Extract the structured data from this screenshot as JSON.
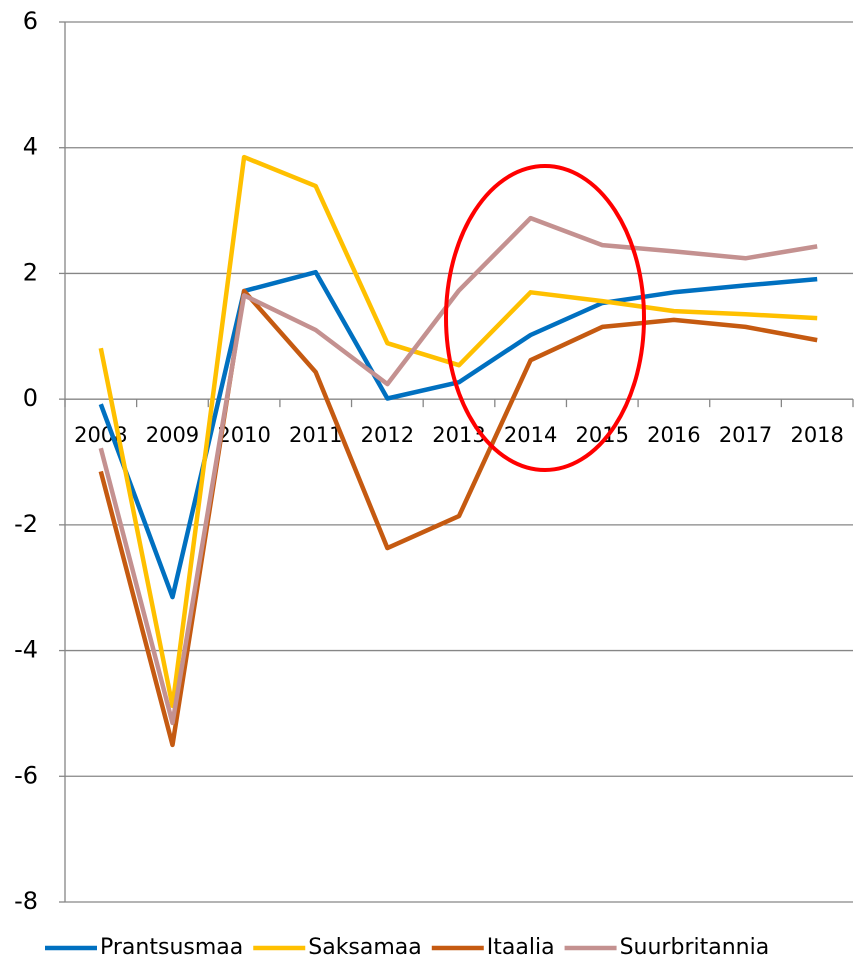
{
  "chart_data": {
    "type": "line",
    "categories": [
      "2008",
      "2009",
      "2010",
      "2011",
      "2012",
      "2013",
      "2014",
      "2015",
      "2016",
      "2017",
      "2018"
    ],
    "series": [
      {
        "name": "Prantsusmaa",
        "color": "#0070c0",
        "values": [
          -0.08,
          -3.15,
          1.72,
          2.02,
          0.01,
          0.27,
          1.02,
          1.53,
          1.7,
          1.81,
          1.91
        ]
      },
      {
        "name": "Saksamaa",
        "color": "#ffc000",
        "values": [
          0.81,
          -4.88,
          3.85,
          3.39,
          0.89,
          0.54,
          1.7,
          1.56,
          1.4,
          1.35,
          1.29
        ]
      },
      {
        "name": "Itaalia",
        "color": "#c55a11",
        "values": [
          -1.15,
          -5.5,
          1.72,
          0.43,
          -2.37,
          -1.86,
          0.62,
          1.15,
          1.26,
          1.15,
          0.94
        ]
      },
      {
        "name": "Suurbritannia",
        "color": "#c49190",
        "values": [
          -0.78,
          -5.15,
          1.65,
          1.1,
          0.24,
          1.73,
          2.88,
          2.45,
          2.35,
          2.24,
          2.43
        ]
      }
    ],
    "ylim": [
      -8,
      6
    ],
    "yticks": [
      -8,
      -6,
      -4,
      -2,
      0,
      2,
      4,
      6
    ],
    "grid": true,
    "legend": "bottom"
  }
}
